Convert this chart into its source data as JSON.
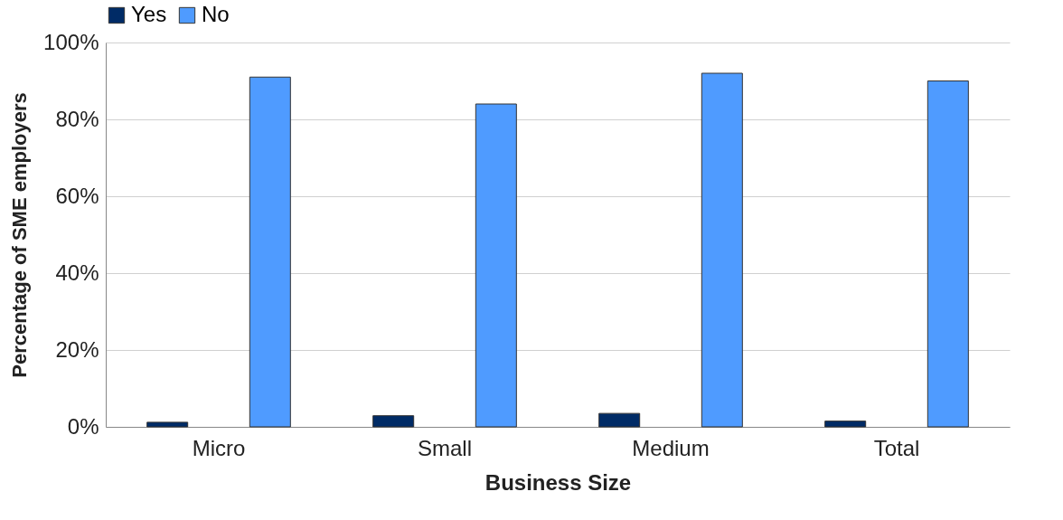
{
  "chart_data": {
    "type": "bar",
    "xlabel": "Business Size",
    "ylabel": "Percentage of SME employers",
    "categories": [
      "Micro",
      "Small",
      "Medium",
      "Total"
    ],
    "series": [
      {
        "name": "Yes",
        "color": "#002b66",
        "values": [
          1.2,
          2.9,
          3.5,
          1.5
        ]
      },
      {
        "name": "No",
        "color": "#4f9bff",
        "values": [
          91,
          84,
          92,
          90
        ]
      }
    ],
    "ylim": [
      0,
      100
    ],
    "yticks": [
      {
        "value": 0,
        "label": "0%"
      },
      {
        "value": 20,
        "label": "20%"
      },
      {
        "value": 40,
        "label": "40%"
      },
      {
        "value": 60,
        "label": "60%"
      },
      {
        "value": 80,
        "label": "80%"
      },
      {
        "value": 100,
        "label": "100%"
      }
    ],
    "grid": "y",
    "legend": "top"
  }
}
